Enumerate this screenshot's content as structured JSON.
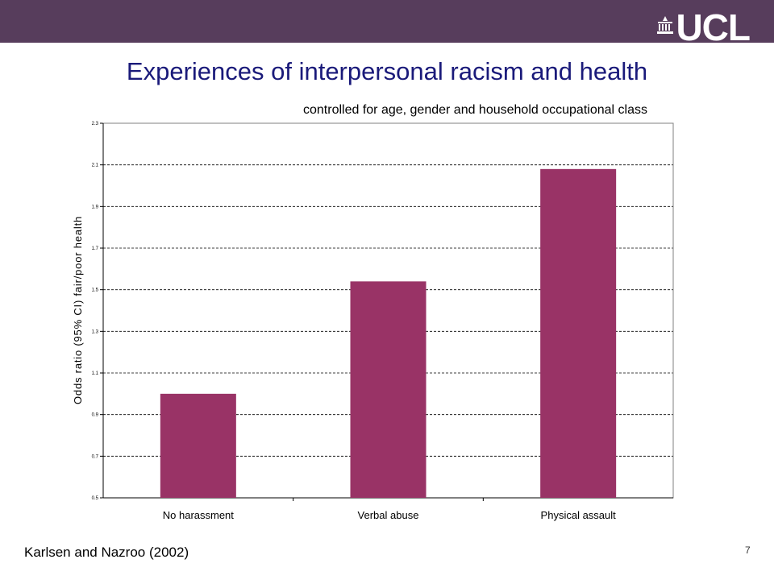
{
  "slide": {
    "title": "Experiences of interpersonal racism and health",
    "subtitle": "controlled for age, gender and household occupational class",
    "reference": "Karlsen and Nazroo (2002)",
    "page_number": "7",
    "logo_text": "UCL"
  },
  "colors": {
    "topbar": "#573d5c",
    "bar": "#993366",
    "title": "#1a1a7a"
  },
  "chart_data": {
    "type": "bar",
    "categories": [
      "No harassment",
      "Verbal abuse",
      "Physical assault"
    ],
    "values": [
      1.0,
      1.54,
      2.08
    ],
    "ylabel": "Odds ratio (95% CI) fair/poor health",
    "xlabel": "",
    "ylim": [
      0.5,
      2.3
    ],
    "yticks": [
      "0.5",
      "0.7",
      "0.9",
      "1.1",
      "1.3",
      "1.5",
      "1.7",
      "1.9",
      "2.1",
      "2.3"
    ],
    "grid": true
  }
}
